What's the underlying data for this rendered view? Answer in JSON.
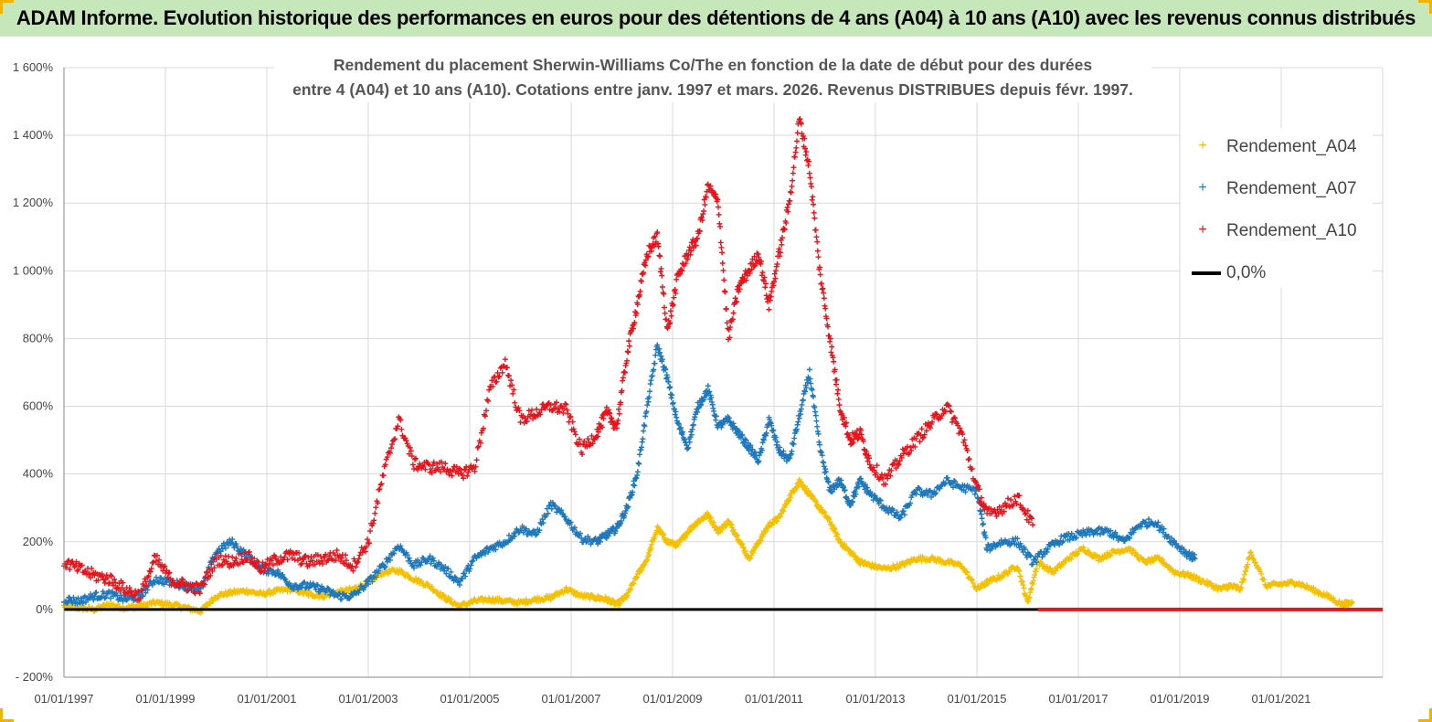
{
  "header": {
    "title": "ADAM Informe. Evolution historique des performances en euros pour des détentions de 4 ans (A04) à 10 ans (A10) avec les revenus connus distribués"
  },
  "chart_data": {
    "type": "scatter",
    "title_lines": [
      "Rendement du placement Sherwin-Williams Co/The en fonction de la date de début pour des durées",
      "entre 4 (A04) et 10 ans (A10). Cotations entre janv. 1997 et mars. 2026. Revenus DISTRIBUES depuis févr. 1997."
    ],
    "ylim": [
      -200,
      1600
    ],
    "ytick_values": [
      -200,
      0,
      200,
      400,
      600,
      800,
      1000,
      1200,
      1400,
      1600
    ],
    "ytick_labels": [
      "- 200%",
      "0%",
      "200%",
      "400%",
      "600%",
      "800%",
      "1 000%",
      "1 200%",
      "1 400%",
      "1 600%"
    ],
    "xlim": [
      1997.0,
      2023.0
    ],
    "xtick_values": [
      1997,
      1999,
      2001,
      2003,
      2005,
      2007,
      2009,
      2011,
      2013,
      2015,
      2017,
      2019,
      2021
    ],
    "xtick_labels": [
      "01/01/1997",
      "01/01/1999",
      "01/01/2001",
      "01/01/2003",
      "01/01/2005",
      "01/01/2007",
      "01/01/2009",
      "01/01/2011",
      "01/01/2013",
      "01/01/2015",
      "01/01/2017",
      "01/01/2019",
      "01/01/2021"
    ],
    "grid": true,
    "legend_position": "top-right",
    "series": [
      {
        "name": "Rendement_A04",
        "color": "#f5c000",
        "x": [
          1997.0,
          1997.3,
          1997.6,
          1997.9,
          1998.2,
          1998.5,
          1998.8,
          1999.1,
          1999.4,
          1999.7,
          2000.0,
          2000.3,
          2000.6,
          2000.9,
          2001.2,
          2001.5,
          2001.8,
          2002.1,
          2002.4,
          2002.7,
          2003.0,
          2003.3,
          2003.6,
          2003.9,
          2004.2,
          2004.5,
          2004.8,
          2005.1,
          2005.4,
          2005.7,
          2006.0,
          2006.3,
          2006.6,
          2006.9,
          2007.2,
          2007.5,
          2007.7,
          2007.9,
          2008.1,
          2008.3,
          2008.5,
          2008.7,
          2008.9,
          2009.1,
          2009.3,
          2009.5,
          2009.7,
          2009.9,
          2010.1,
          2010.3,
          2010.5,
          2010.7,
          2010.9,
          2011.1,
          2011.3,
          2011.5,
          2011.7,
          2011.9,
          2012.1,
          2012.3,
          2012.5,
          2012.7,
          2012.9,
          2013.2,
          2013.5,
          2013.8,
          2014.1,
          2014.4,
          2014.7,
          2015.0,
          2015.2,
          2015.5,
          2015.8,
          2016.0,
          2016.2,
          2016.5,
          2016.8,
          2017.1,
          2017.4,
          2017.7,
          2018.0,
          2018.3,
          2018.6,
          2018.9,
          2019.2,
          2019.5,
          2019.8,
          2020.0,
          2020.2,
          2020.4,
          2020.7,
          2021.0,
          2021.3,
          2021.6,
          2021.9,
          2022.2,
          2022.4
        ],
        "y": [
          10,
          5,
          0,
          15,
          5,
          10,
          20,
          15,
          5,
          -5,
          40,
          50,
          55,
          45,
          55,
          60,
          45,
          40,
          50,
          60,
          80,
          110,
          115,
          90,
          70,
          35,
          10,
          25,
          30,
          25,
          20,
          30,
          35,
          60,
          40,
          35,
          30,
          15,
          40,
          100,
          150,
          240,
          200,
          190,
          230,
          260,
          280,
          230,
          260,
          210,
          150,
          200,
          250,
          270,
          330,
          380,
          340,
          300,
          260,
          200,
          170,
          140,
          130,
          120,
          130,
          150,
          150,
          140,
          130,
          60,
          80,
          100,
          130,
          20,
          140,
          110,
          150,
          180,
          150,
          170,
          180,
          140,
          150,
          110,
          100,
          80,
          60,
          70,
          60,
          170,
          70,
          75,
          80,
          60,
          40,
          15,
          20
        ]
      },
      {
        "name": "Rendement_A07",
        "color": "#1e78bd",
        "x": [
          1997.0,
          1997.3,
          1997.6,
          1997.9,
          1998.2,
          1998.5,
          1998.8,
          1999.1,
          1999.4,
          1999.7,
          2000.0,
          2000.3,
          2000.6,
          2000.9,
          2001.2,
          2001.5,
          2001.8,
          2002.1,
          2002.4,
          2002.7,
          2003.0,
          2003.3,
          2003.6,
          2003.9,
          2004.2,
          2004.5,
          2004.8,
          2005.1,
          2005.4,
          2005.7,
          2006.0,
          2006.3,
          2006.6,
          2006.9,
          2007.2,
          2007.5,
          2007.7,
          2007.9,
          2008.1,
          2008.3,
          2008.5,
          2008.7,
          2008.9,
          2009.1,
          2009.3,
          2009.5,
          2009.7,
          2009.9,
          2010.1,
          2010.3,
          2010.5,
          2010.7,
          2010.9,
          2011.1,
          2011.3,
          2011.5,
          2011.7,
          2011.9,
          2012.1,
          2012.3,
          2012.5,
          2012.7,
          2012.9,
          2013.2,
          2013.5,
          2013.8,
          2014.1,
          2014.4,
          2014.7,
          2015.0,
          2015.2,
          2015.5,
          2015.8,
          2016.1,
          2016.4,
          2016.7,
          2017.0,
          2017.3,
          2017.6,
          2017.9,
          2018.2,
          2018.5,
          2018.8,
          2019.1,
          2019.3
        ],
        "y": [
          30,
          25,
          40,
          45,
          30,
          40,
          90,
          80,
          70,
          60,
          170,
          200,
          160,
          120,
          110,
          70,
          70,
          60,
          40,
          40,
          80,
          130,
          190,
          130,
          150,
          120,
          80,
          150,
          180,
          200,
          240,
          220,
          310,
          270,
          210,
          200,
          220,
          240,
          300,
          400,
          600,
          780,
          680,
          550,
          480,
          600,
          650,
          540,
          560,
          520,
          480,
          440,
          560,
          470,
          440,
          570,
          700,
          480,
          350,
          380,
          310,
          380,
          340,
          300,
          270,
          350,
          340,
          380,
          360,
          350,
          180,
          200,
          200,
          140,
          180,
          210,
          220,
          230,
          230,
          200,
          250,
          260,
          210,
          170,
          150
        ]
      },
      {
        "name": "Rendement_A10",
        "color": "#e8141c",
        "x": [
          1997.0,
          1997.3,
          1997.6,
          1997.9,
          1998.2,
          1998.5,
          1998.8,
          1999.1,
          1999.4,
          1999.7,
          2000.0,
          2000.3,
          2000.6,
          2000.9,
          2001.2,
          2001.5,
          2001.8,
          2002.1,
          2002.4,
          2002.7,
          2003.0,
          2003.3,
          2003.6,
          2003.9,
          2004.2,
          2004.5,
          2004.8,
          2005.1,
          2005.4,
          2005.7,
          2006.0,
          2006.3,
          2006.6,
          2006.9,
          2007.2,
          2007.5,
          2007.7,
          2007.9,
          2008.1,
          2008.3,
          2008.5,
          2008.7,
          2008.9,
          2009.1,
          2009.3,
          2009.5,
          2009.7,
          2009.9,
          2010.1,
          2010.3,
          2010.5,
          2010.7,
          2010.9,
          2011.1,
          2011.3,
          2011.5,
          2011.7,
          2011.9,
          2012.1,
          2012.3,
          2012.5,
          2012.7,
          2012.9,
          2013.2,
          2013.5,
          2013.8,
          2014.1,
          2014.4,
          2014.7,
          2015.0,
          2015.2,
          2015.5,
          2015.8,
          2016.1
        ],
        "y": [
          140,
          120,
          100,
          90,
          60,
          40,
          150,
          90,
          70,
          60,
          150,
          140,
          160,
          120,
          150,
          160,
          140,
          150,
          160,
          130,
          200,
          400,
          560,
          430,
          420,
          420,
          400,
          420,
          650,
          730,
          560,
          580,
          600,
          590,
          470,
          520,
          580,
          540,
          750,
          900,
          1050,
          1100,
          820,
          980,
          1050,
          1100,
          1250,
          1200,
          800,
          950,
          1000,
          1050,
          900,
          1050,
          1200,
          1450,
          1300,
          1000,
          800,
          600,
          500,
          520,
          430,
          380,
          450,
          500,
          550,
          600,
          520,
          360,
          280,
          300,
          330,
          250
        ]
      },
      {
        "name": "0,0%",
        "color": "#000000",
        "x": [
          1997.0,
          2023.0
        ],
        "y": [
          0,
          0
        ]
      }
    ],
    "zero_mark_series": {
      "name": "Rendement_A10",
      "color": "#e8141c",
      "x": [
        2016.2,
        2023.0
      ],
      "y": [
        0,
        0
      ]
    }
  },
  "legend": {
    "items": [
      {
        "label": "Rendement_A04",
        "color": "#f5c000",
        "marker": "+"
      },
      {
        "label": "Rendement_A07",
        "color": "#1e78bd",
        "marker": "+"
      },
      {
        "label": "Rendement_A10",
        "color": "#e8141c",
        "marker": "+"
      },
      {
        "label": "0,0%",
        "color": "#000000",
        "marker": "line"
      }
    ]
  }
}
